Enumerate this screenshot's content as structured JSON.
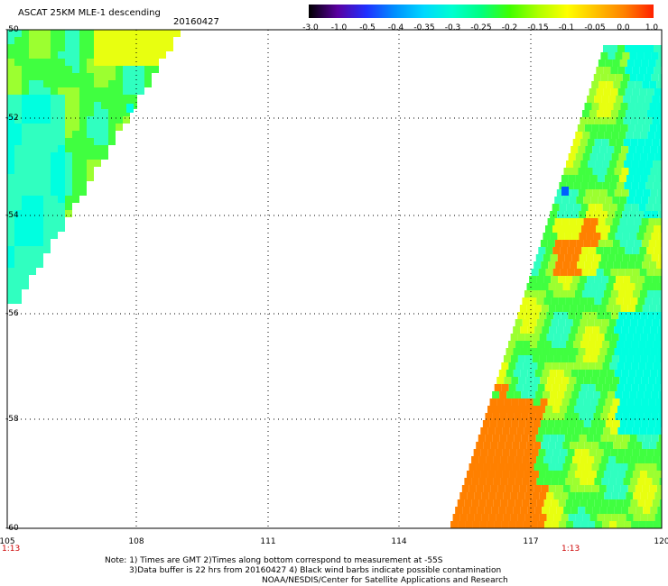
{
  "header": {
    "title": "ASCAT 25KM MLE-1 descending",
    "date": "20160427"
  },
  "colorbar": {
    "labels": [
      "-3.0",
      "-1.0",
      "-0.5",
      "-0.4",
      "-0.35",
      "-0.3",
      "-0.25",
      "-0.2",
      "-0.15",
      "-0.1",
      "-0.05",
      "0.0",
      "1.0"
    ],
    "colors": [
      "#000000",
      "#5a00a0",
      "#2030ff",
      "#0090ff",
      "#00d8ff",
      "#00ffd0",
      "#00ff80",
      "#40ff00",
      "#b0ff00",
      "#ffff00",
      "#ffc000",
      "#ff8000",
      "#ff2000"
    ]
  },
  "map": {
    "lat_labels": [
      "-50",
      "-52",
      "-54",
      "-56",
      "-58",
      "-60"
    ],
    "lon_labels": [
      "105",
      "108",
      "111",
      "114",
      "117",
      "120"
    ],
    "time_labels": [
      "1:13",
      "1:13"
    ],
    "field_colors": {
      "cyan": "#00ffe0",
      "aqua": "#30ffc0",
      "green": "#40ff40",
      "lime": "#9cff30",
      "yellow": "#e8ff10",
      "orange": "#ff8000",
      "blue": "#0060ff"
    }
  },
  "notes": {
    "line1": "Note: 1) Times are GMT 2)Times along bottom correspond to measurement at -55S",
    "line2": "3)Data buffer is 22 hrs from 20160427 4) Black wind barbs indicate possible contamination",
    "line3": "NOAA/NESDIS/Center for Satellite Applications and Research"
  }
}
